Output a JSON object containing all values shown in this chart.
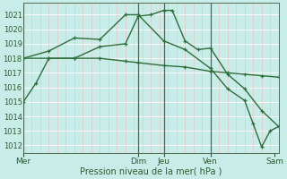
{
  "xlabel": "Pression niveau de la mer( hPa )",
  "bg_color": "#c8ece8",
  "grid_h_color": "#ffffff",
  "grid_v_color": "#e8c8c8",
  "grid_v_dark_color": "#556655",
  "line_color": "#2d6e3a",
  "ylim": [
    1011.5,
    1021.8
  ],
  "xlim": [
    0,
    30
  ],
  "yticks": [
    1012,
    1013,
    1014,
    1015,
    1016,
    1017,
    1018,
    1019,
    1020,
    1021
  ],
  "day_labels": [
    "Mer",
    "Dim",
    "Jeu",
    "Ven",
    "Sam"
  ],
  "day_x": [
    0,
    13.5,
    16.5,
    22,
    29.5
  ],
  "day_vlines": [
    0,
    13.5,
    16.5,
    22
  ],
  "n_minor_v": 30,
  "series1_x": [
    0,
    1.5,
    3,
    6,
    9,
    12,
    13.5,
    15,
    16.5,
    17.5,
    19,
    20.5,
    22,
    24,
    26,
    28,
    30
  ],
  "series1_y": [
    1015.0,
    1016.3,
    1018.0,
    1018.0,
    1018.8,
    1019.0,
    1020.9,
    1021.0,
    1021.3,
    1021.3,
    1019.2,
    1018.6,
    1018.7,
    1016.9,
    1015.9,
    1014.4,
    1013.3
  ],
  "series2_x": [
    0,
    3,
    6,
    9,
    12,
    13.5,
    16.5,
    19,
    22,
    24,
    26,
    28,
    30
  ],
  "series2_y": [
    1018.0,
    1018.0,
    1018.0,
    1018.0,
    1017.8,
    1017.7,
    1017.5,
    1017.4,
    1017.1,
    1017.0,
    1016.9,
    1016.8,
    1016.7
  ],
  "series3_x": [
    0,
    3,
    6,
    9,
    12,
    13.5,
    16.5,
    19,
    22,
    24,
    26,
    27,
    28,
    29,
    30
  ],
  "series3_y": [
    1018.0,
    1018.5,
    1019.4,
    1019.3,
    1021.0,
    1021.0,
    1019.2,
    1018.6,
    1017.3,
    1015.9,
    1015.1,
    1013.5,
    1011.9,
    1013.0,
    1013.3
  ]
}
